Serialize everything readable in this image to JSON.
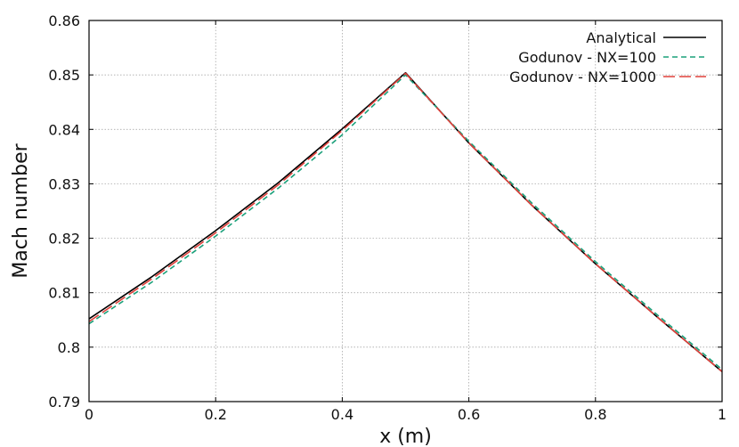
{
  "chart_data": {
    "type": "line",
    "xlabel": "x (m)",
    "ylabel": "Mach number",
    "xlim": [
      0,
      1
    ],
    "ylim": [
      0.79,
      0.86
    ],
    "xticks": [
      "0",
      "0.2",
      "0.4",
      "0.6",
      "0.8",
      "1"
    ],
    "yticks": [
      "0.79",
      "0.8",
      "0.81",
      "0.82",
      "0.83",
      "0.84",
      "0.85",
      "0.86"
    ],
    "grid": true,
    "legend_position": "top-right",
    "series": [
      {
        "name": "Analytical",
        "color": "#000000",
        "dash": "solid",
        "x": [
          0,
          0.1,
          0.2,
          0.3,
          0.4,
          0.5,
          0.6,
          0.7,
          0.8,
          0.9,
          1.0
        ],
        "y": [
          0.8052,
          0.813,
          0.8214,
          0.8303,
          0.8401,
          0.8504,
          0.8375,
          0.826,
          0.8153,
          0.8053,
          0.7955
        ]
      },
      {
        "name": "Godunov - NX=100",
        "color": "#1aa07a",
        "dash": "dashed",
        "x": [
          0,
          0.1,
          0.2,
          0.3,
          0.4,
          0.5,
          0.6,
          0.7,
          0.8,
          0.9,
          1.0
        ],
        "y": [
          0.8043,
          0.812,
          0.8204,
          0.8293,
          0.839,
          0.85,
          0.8378,
          0.8264,
          0.8157,
          0.8057,
          0.7959
        ]
      },
      {
        "name": "Godunov - NX=1000",
        "color": "#e0403a",
        "dash": "long-dashed",
        "x": [
          0,
          0.1,
          0.2,
          0.3,
          0.4,
          0.5,
          0.6,
          0.7,
          0.8,
          0.9,
          1.0
        ],
        "y": [
          0.8047,
          0.8126,
          0.821,
          0.8299,
          0.8398,
          0.8503,
          0.8375,
          0.826,
          0.8153,
          0.8053,
          0.7955
        ]
      }
    ]
  }
}
